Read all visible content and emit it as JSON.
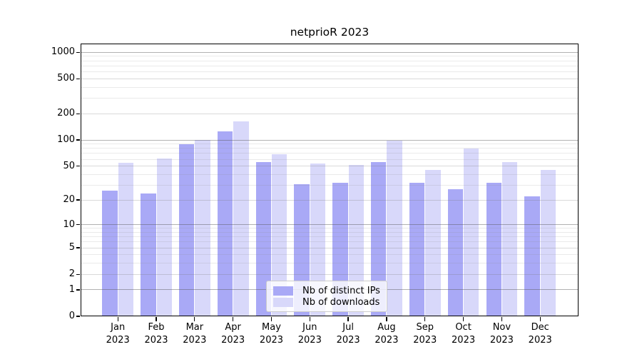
{
  "chart_data": {
    "type": "bar",
    "title": "netprioR 2023",
    "categories": [
      "Jan\n2023",
      "Feb\n2023",
      "Mar\n2023",
      "Apr\n2023",
      "May\n2023",
      "Jun\n2023",
      "Jul\n2023",
      "Aug\n2023",
      "Sep\n2023",
      "Oct\n2023",
      "Nov\n2023",
      "Dec\n2023"
    ],
    "series": [
      {
        "name": "Nb of distinct IPs",
        "color": "#a9a9f6",
        "values": [
          26,
          24,
          89,
          125,
          56,
          31,
          32,
          56,
          32,
          27,
          32,
          22
        ]
      },
      {
        "name": "Nb of downloads",
        "color": "#d8d8fa",
        "values": [
          55,
          61,
          100,
          162,
          68,
          54,
          52,
          98,
          45,
          80,
          56,
          45
        ]
      }
    ],
    "y_scale": "log1p",
    "ylim": [
      0,
      1260
    ],
    "y_ticks": [
      0,
      1,
      2,
      5,
      10,
      20,
      50,
      100,
      200,
      500,
      1000
    ],
    "y_decade_ticks": [
      1,
      10,
      100,
      1000
    ],
    "y_minor_ticks": [
      3,
      4,
      6,
      7,
      8,
      9,
      30,
      40,
      60,
      70,
      80,
      90,
      300,
      400,
      600,
      700,
      800,
      900
    ],
    "grid": true,
    "legend_position": "lower center",
    "colors": {
      "axis": "#000000",
      "grid_major": "#555555",
      "grid_mid": "#777777",
      "grid_minor": "#888888",
      "background": "#ffffff"
    }
  }
}
